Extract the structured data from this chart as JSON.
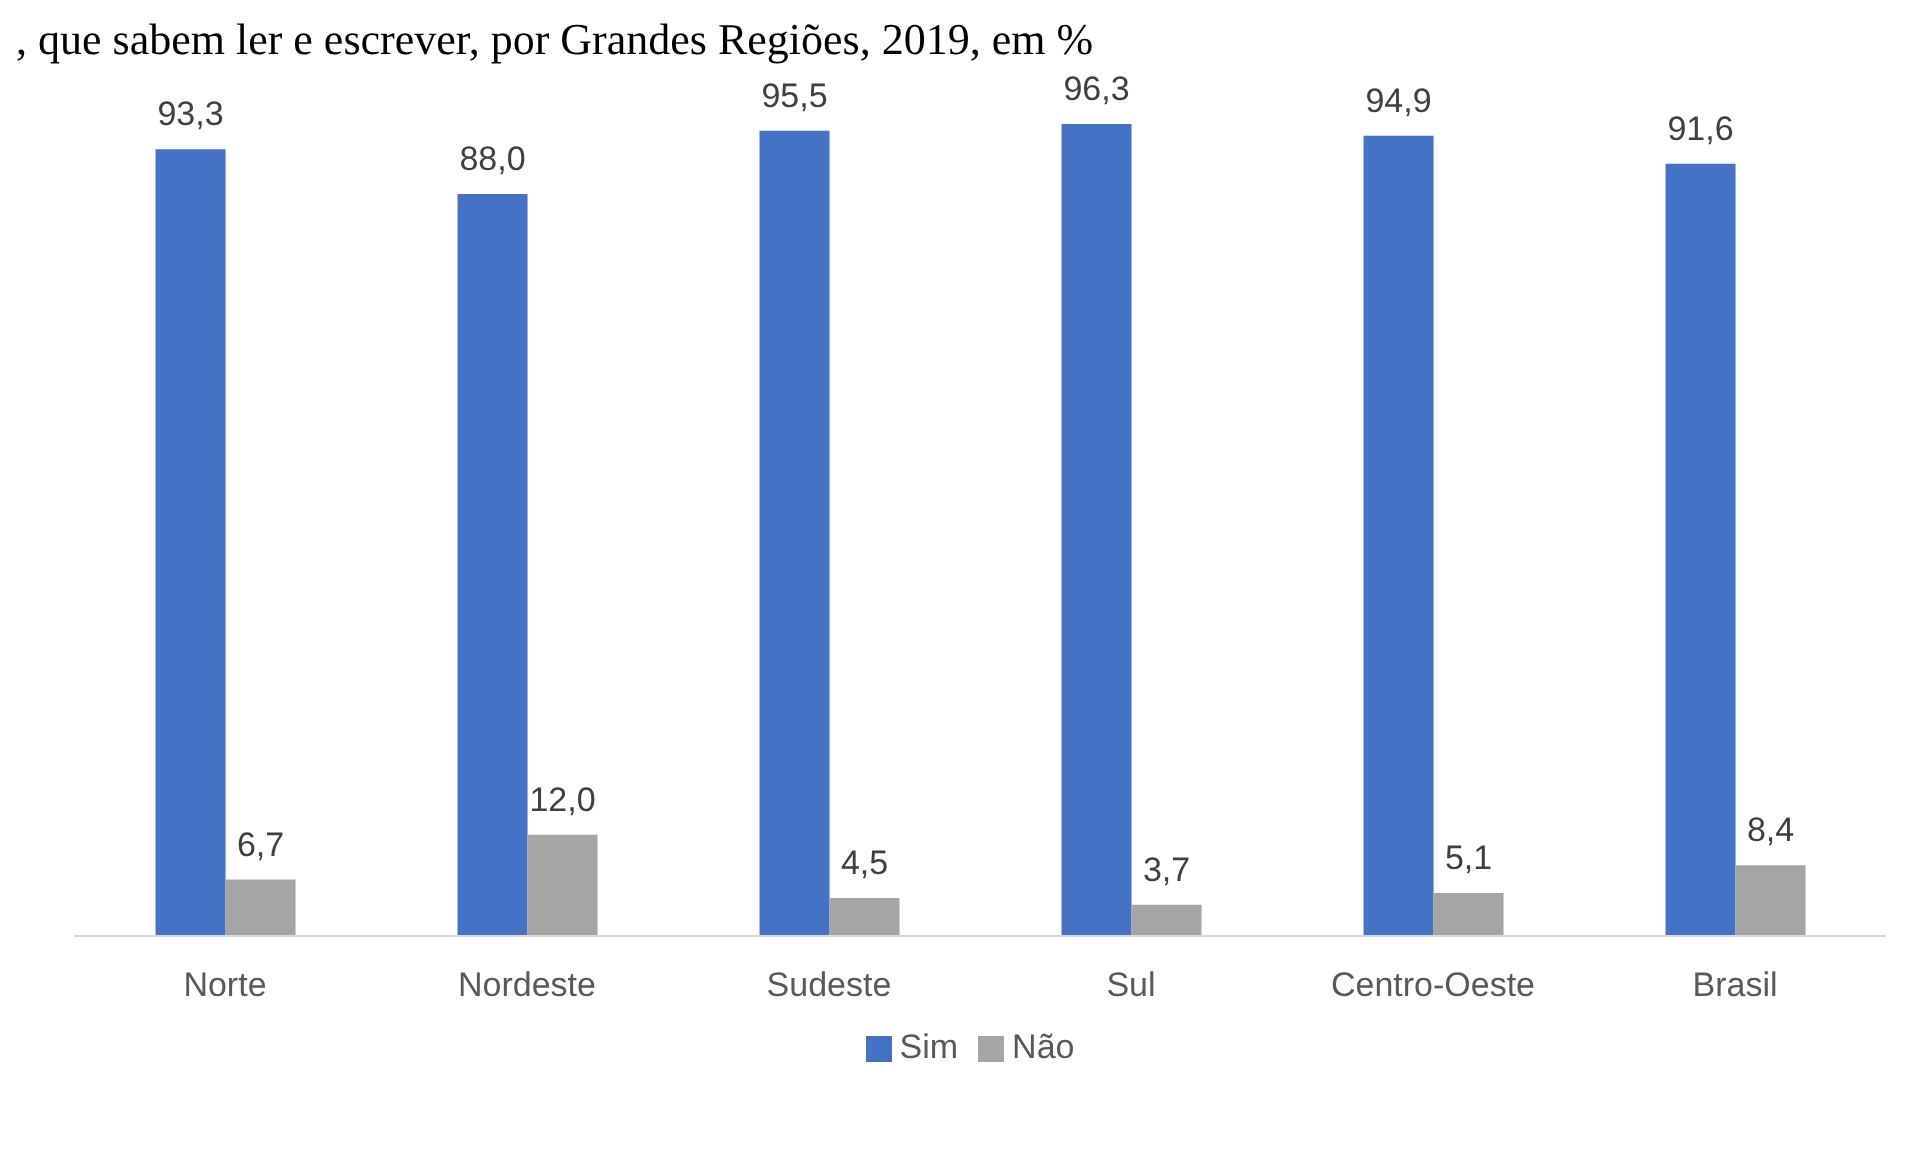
{
  "chart_data": {
    "type": "bar",
    "title": ", que sabem ler e escrever, por Grandes Regiões, 2019, em %",
    "categories": [
      "Norte",
      "Nordeste",
      "Sudeste",
      "Sul",
      "Centro-Oeste",
      "Brasil"
    ],
    "series": [
      {
        "name": "Sim",
        "color": "#4472c4",
        "values": [
          93.3,
          88.0,
          95.5,
          96.3,
          94.9,
          91.6
        ],
        "value_labels": [
          "93,3",
          "88,0",
          "95,5",
          "96,3",
          "94,9",
          "91,6"
        ]
      },
      {
        "name": "Não",
        "color": "#a5a5a5",
        "values": [
          6.7,
          12.0,
          4.5,
          3.7,
          5.1,
          8.4
        ],
        "value_labels": [
          "6,7",
          "12,0",
          "4,5",
          "3,7",
          "5,1",
          "8,4"
        ]
      }
    ],
    "legend": "bottom",
    "grid": false
  }
}
